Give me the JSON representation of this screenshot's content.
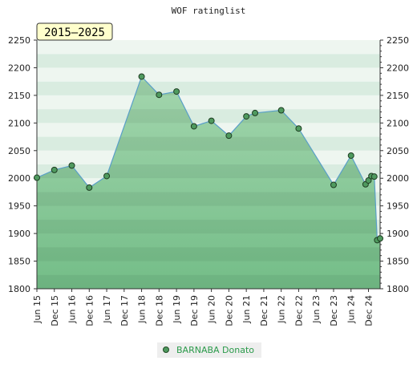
{
  "chart_data": {
    "type": "area",
    "title": "WOF ratinglist",
    "period_badge": "2015–2025",
    "ylim": [
      1800,
      2250
    ],
    "y_ticks": [
      "1800",
      "1850",
      "1900",
      "1950",
      "2000",
      "2050",
      "2100",
      "2150",
      "2200",
      "2250"
    ],
    "x_ticks": [
      "Jun 15",
      "Dec 15",
      "Jun 16",
      "Dec 16",
      "Jun 17",
      "Dec 17",
      "Jun 18",
      "Dec 18",
      "Jun 19",
      "Dec 19",
      "Jun 20",
      "Dec 20",
      "Jun 21",
      "Dec 21",
      "Jun 22",
      "Dec 22",
      "Jun 23",
      "Dec 23",
      "Jun 24",
      "Dec 24"
    ],
    "grid": true,
    "legend_position": "bottom-center",
    "colors": {
      "line": "#5a9fc8",
      "marker": "#4f9a5f",
      "legend_text": "#2a9a4a",
      "badge_bg": "#ffffcc"
    },
    "series": [
      {
        "name": "BARNABA Donato",
        "points": [
          {
            "x": "Jun 15",
            "y": 2001
          },
          {
            "x": "Dec 15",
            "y": 2015
          },
          {
            "x": "Jun 16",
            "y": 2023
          },
          {
            "x": "Dec 16",
            "y": 1983
          },
          {
            "x": "Jun 17",
            "y": 2004
          },
          {
            "x": "Jun 18",
            "y": 2184
          },
          {
            "x": "Dec 18",
            "y": 2151
          },
          {
            "x": "Jun 19",
            "y": 2157
          },
          {
            "x": "Dec 19",
            "y": 2094
          },
          {
            "x": "Jun 20",
            "y": 2104
          },
          {
            "x": "Dec 20",
            "y": 2077
          },
          {
            "x": "Jun 21",
            "y": 2112
          },
          {
            "x": "Sep 21",
            "y": 2118
          },
          {
            "x": "Jun 22",
            "y": 2123
          },
          {
            "x": "Dec 22",
            "y": 2090
          },
          {
            "x": "Dec 23",
            "y": 1988
          },
          {
            "x": "Jun 24",
            "y": 2041
          },
          {
            "x": "Nov 24",
            "y": 1989
          },
          {
            "x": "Dec 24",
            "y": 1996
          },
          {
            "x": "Jan 25",
            "y": 2004
          },
          {
            "x": "Feb 25",
            "y": 2003
          },
          {
            "x": "Mar 25",
            "y": 1888
          },
          {
            "x": "Apr 25",
            "y": 1891
          }
        ]
      }
    ]
  }
}
